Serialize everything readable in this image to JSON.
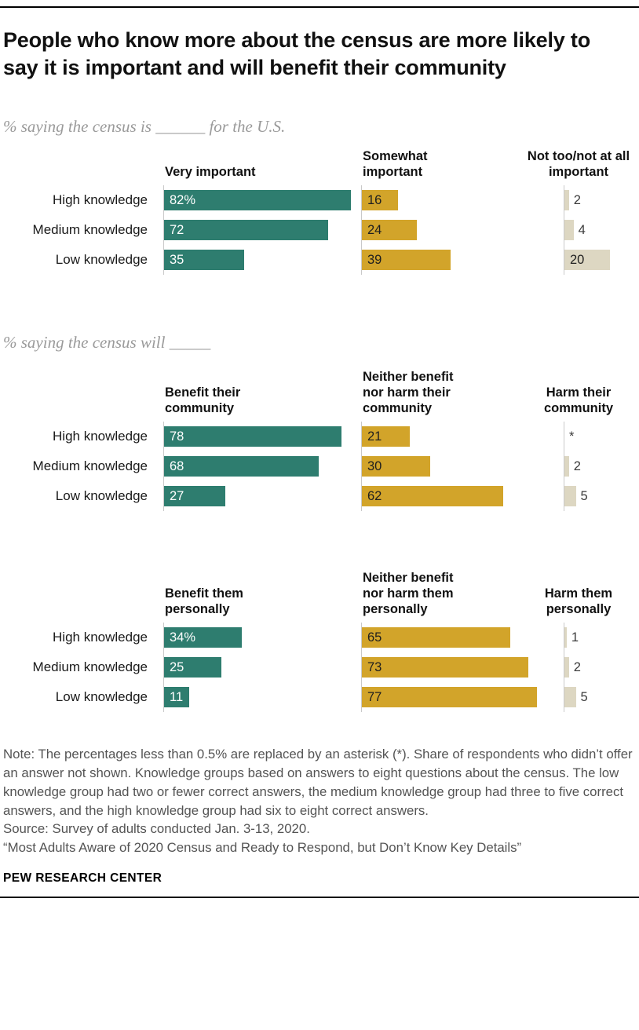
{
  "page": {
    "title": "People who know more about the census are more likely to say it is important and will benefit their community",
    "footer": "PEW RESEARCH CENTER"
  },
  "notes": {
    "note": "Note: The percentages less than 0.5% are replaced by an asterisk (*). Share of respondents who didn’t offer an answer not shown. Knowledge groups based on answers to eight questions about the census. The low knowledge group had two or fewer correct answers, the medium knowledge group had three to five correct answers, and the high knowledge group had six to eight correct answers.",
    "source": "Source: Survey of adults conducted Jan. 3-13, 2020.",
    "citation": "“Most Adults Aware of 2020 Census and Ready to Respond, but Don’t Know Key Details”"
  },
  "colors": {
    "green": "#2e7d6f",
    "gold": "#d2a42a",
    "tan": "#ddd7c2"
  },
  "chart_data": [
    {
      "type": "bar",
      "subtitle": "% saying the census is ______ for the U.S.",
      "categories": [
        "High knowledge",
        "Medium knowledge",
        "Low knowledge"
      ],
      "xlim": [
        0,
        100
      ],
      "series": [
        {
          "name": "Very important",
          "color_key": "green",
          "values": [
            82,
            72,
            35
          ],
          "labels": [
            "82%",
            "72",
            "35"
          ]
        },
        {
          "name": "Somewhat important",
          "color_key": "gold",
          "values": [
            16,
            24,
            39
          ],
          "labels": [
            "16",
            "24",
            "39"
          ]
        },
        {
          "name": "Not too/not at all important",
          "color_key": "tan",
          "values": [
            2,
            4,
            20
          ],
          "labels": [
            "2",
            "4",
            "20"
          ]
        }
      ]
    },
    {
      "type": "bar",
      "subtitle": "% saying the census will _____",
      "categories": [
        "High knowledge",
        "Medium knowledge",
        "Low knowledge"
      ],
      "xlim": [
        0,
        100
      ],
      "series": [
        {
          "name": "Benefit their community",
          "color_key": "green",
          "values": [
            78,
            68,
            27
          ],
          "labels": [
            "78",
            "68",
            "27"
          ]
        },
        {
          "name": "Neither benefit nor harm their community",
          "color_key": "gold",
          "values": [
            21,
            30,
            62
          ],
          "labels": [
            "21",
            "30",
            "62"
          ]
        },
        {
          "name": "Harm their community",
          "color_key": "tan",
          "values": [
            0,
            2,
            5
          ],
          "labels": [
            "*",
            "2",
            "5"
          ]
        }
      ]
    },
    {
      "type": "bar",
      "subtitle": null,
      "categories": [
        "High knowledge",
        "Medium knowledge",
        "Low knowledge"
      ],
      "xlim": [
        0,
        100
      ],
      "series": [
        {
          "name": "Benefit them personally",
          "color_key": "green",
          "values": [
            34,
            25,
            11
          ],
          "labels": [
            "34%",
            "25",
            "11"
          ]
        },
        {
          "name": "Neither benefit nor harm them personally",
          "color_key": "gold",
          "values": [
            65,
            73,
            77
          ],
          "labels": [
            "65",
            "73",
            "77"
          ]
        },
        {
          "name": "Harm them personally",
          "color_key": "tan",
          "values": [
            1,
            2,
            5
          ],
          "labels": [
            "1",
            "2",
            "5"
          ]
        }
      ]
    }
  ]
}
